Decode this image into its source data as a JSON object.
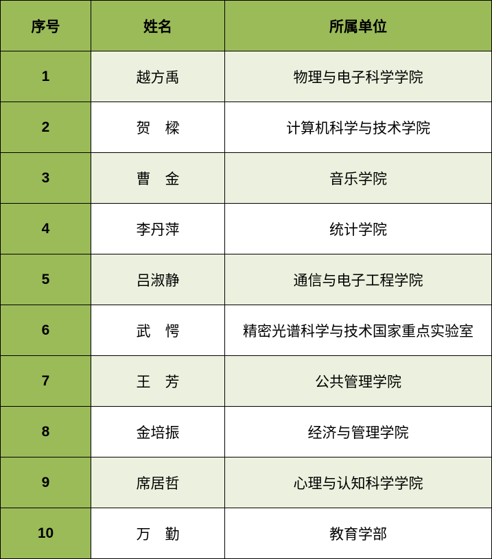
{
  "headers": [
    "序号",
    "姓名",
    "所属单位"
  ],
  "rows": [
    {
      "no": "1",
      "name": "越方禹",
      "unit": "物理与电子科学学院"
    },
    {
      "no": "2",
      "name": "贺　樑",
      "unit": "计算机科学与技术学院"
    },
    {
      "no": "3",
      "name": "曹　金",
      "unit": "音乐学院"
    },
    {
      "no": "4",
      "name": "李丹萍",
      "unit": "统计学院"
    },
    {
      "no": "5",
      "name": "吕淑静",
      "unit": "通信与电子工程学院"
    },
    {
      "no": "6",
      "name": "武　愕",
      "unit": "精密光谱科学与技术国家重点实验室"
    },
    {
      "no": "7",
      "name": "王　芳",
      "unit": "公共管理学院"
    },
    {
      "no": "8",
      "name": "金培振",
      "unit": "经济与管理学院"
    },
    {
      "no": "9",
      "name": "席居哲",
      "unit": "心理与认知科学学院"
    },
    {
      "no": "10",
      "name": "万　勤",
      "unit": "教育学部"
    }
  ],
  "colors": {
    "header": "#9bbb59",
    "band": "#ebf1de"
  }
}
